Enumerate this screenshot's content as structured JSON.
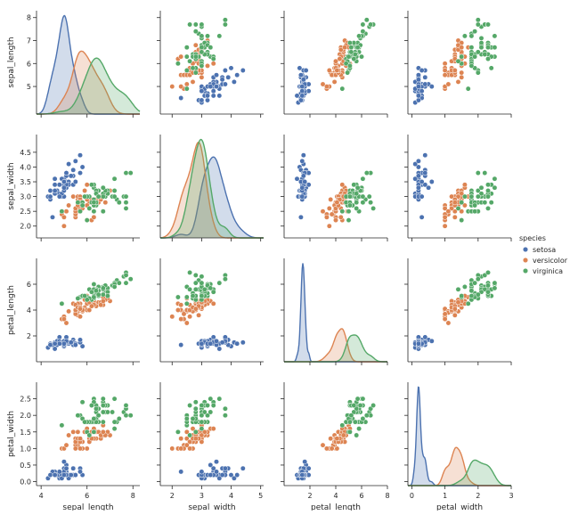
{
  "chart_data": {
    "type": "scatter",
    "variables": [
      "sepal_length",
      "sepal_width",
      "petal_length",
      "petal_width"
    ],
    "ranges": {
      "sepal_length": [
        3.8,
        8.3
      ],
      "sepal_width": [
        1.6,
        5.1
      ],
      "petal_length": [
        0.0,
        8.0
      ],
      "petal_width": [
        -0.12,
        3.0
      ]
    },
    "ticks": {
      "sepal_length": [
        4,
        6,
        8
      ],
      "sepal_width": [
        2,
        3,
        4,
        5
      ],
      "petal_length": [
        2,
        4,
        6,
        8
      ],
      "petal_width": [
        0,
        1,
        2,
        3
      ]
    },
    "tick_labels_y": {
      "sepal_length": [
        "5",
        "6",
        "7",
        "8"
      ],
      "sepal_width": [
        "2.0",
        "2.5",
        "3.0",
        "3.5",
        "4.0",
        "4.5"
      ],
      "petal_length": [
        "2",
        "4",
        "6"
      ],
      "petal_width": [
        "0.0",
        "0.5",
        "1.0",
        "1.5",
        "2.0",
        "2.5"
      ]
    },
    "tick_values_y": {
      "sepal_length": [
        5,
        6,
        7,
        8
      ],
      "sepal_width": [
        2.0,
        2.5,
        3.0,
        3.5,
        4.0,
        4.5
      ],
      "petal_length": [
        2,
        4,
        6
      ],
      "petal_width": [
        0.0,
        0.5,
        1.0,
        1.5,
        2.0,
        2.5
      ]
    },
    "tick_labels_x": {
      "sepal_length": [
        "4",
        "6",
        "8"
      ],
      "sepal_width": [
        "2",
        "3",
        "4",
        "5"
      ],
      "petal_length": [
        "2",
        "4",
        "6",
        "8"
      ],
      "petal_width": [
        "0",
        "1",
        "2",
        "3"
      ]
    },
    "legend": {
      "title": "species",
      "entries": [
        "setosa",
        "versicolor",
        "virginica"
      ],
      "placement": "center-right"
    },
    "colors": {
      "setosa": "#4c72b0",
      "versicolor": "#dd8452",
      "virginica": "#55a868"
    },
    "diagonal": "kde",
    "series": [
      {
        "name": "setosa",
        "points": [
          [
            5.1,
            3.5,
            1.4,
            0.2
          ],
          [
            4.9,
            3.0,
            1.4,
            0.2
          ],
          [
            4.7,
            3.2,
            1.3,
            0.2
          ],
          [
            4.6,
            3.1,
            1.5,
            0.2
          ],
          [
            5.0,
            3.6,
            1.4,
            0.2
          ],
          [
            5.4,
            3.9,
            1.7,
            0.4
          ],
          [
            4.6,
            3.4,
            1.4,
            0.3
          ],
          [
            5.0,
            3.4,
            1.5,
            0.2
          ],
          [
            4.4,
            2.9,
            1.4,
            0.2
          ],
          [
            4.9,
            3.1,
            1.5,
            0.1
          ],
          [
            5.4,
            3.7,
            1.5,
            0.2
          ],
          [
            4.8,
            3.4,
            1.6,
            0.2
          ],
          [
            4.8,
            3.0,
            1.4,
            0.1
          ],
          [
            4.3,
            3.0,
            1.1,
            0.1
          ],
          [
            5.8,
            4.0,
            1.2,
            0.2
          ],
          [
            5.7,
            4.4,
            1.5,
            0.4
          ],
          [
            5.4,
            3.9,
            1.3,
            0.4
          ],
          [
            5.1,
            3.5,
            1.4,
            0.3
          ],
          [
            5.7,
            3.8,
            1.7,
            0.3
          ],
          [
            5.1,
            3.8,
            1.5,
            0.3
          ],
          [
            5.4,
            3.4,
            1.7,
            0.2
          ],
          [
            5.1,
            3.7,
            1.5,
            0.4
          ],
          [
            4.6,
            3.6,
            1.0,
            0.2
          ],
          [
            5.1,
            3.3,
            1.7,
            0.5
          ],
          [
            4.8,
            3.4,
            1.9,
            0.2
          ],
          [
            5.0,
            3.0,
            1.6,
            0.2
          ],
          [
            5.0,
            3.4,
            1.6,
            0.4
          ],
          [
            5.2,
            3.5,
            1.5,
            0.2
          ],
          [
            5.2,
            3.4,
            1.4,
            0.2
          ],
          [
            4.7,
            3.2,
            1.6,
            0.2
          ],
          [
            4.8,
            3.1,
            1.6,
            0.2
          ],
          [
            5.4,
            3.4,
            1.5,
            0.4
          ],
          [
            5.2,
            4.1,
            1.5,
            0.1
          ],
          [
            5.5,
            4.2,
            1.4,
            0.2
          ],
          [
            4.9,
            3.1,
            1.5,
            0.2
          ],
          [
            5.0,
            3.2,
            1.2,
            0.2
          ],
          [
            5.5,
            3.5,
            1.3,
            0.2
          ],
          [
            4.9,
            3.6,
            1.4,
            0.1
          ],
          [
            4.4,
            3.0,
            1.3,
            0.2
          ],
          [
            5.1,
            3.4,
            1.5,
            0.2
          ],
          [
            5.0,
            3.5,
            1.3,
            0.3
          ],
          [
            4.5,
            2.3,
            1.3,
            0.3
          ],
          [
            4.4,
            3.2,
            1.3,
            0.2
          ],
          [
            5.0,
            3.5,
            1.6,
            0.6
          ],
          [
            5.1,
            3.8,
            1.9,
            0.4
          ],
          [
            4.8,
            3.0,
            1.4,
            0.3
          ],
          [
            5.1,
            3.8,
            1.6,
            0.2
          ],
          [
            4.6,
            3.2,
            1.4,
            0.2
          ],
          [
            5.3,
            3.7,
            1.5,
            0.2
          ],
          [
            5.0,
            3.3,
            1.4,
            0.2
          ]
        ]
      },
      {
        "name": "versicolor",
        "points": [
          [
            7.0,
            3.2,
            4.7,
            1.4
          ],
          [
            6.4,
            3.2,
            4.5,
            1.5
          ],
          [
            6.9,
            3.1,
            4.9,
            1.5
          ],
          [
            5.5,
            2.3,
            4.0,
            1.3
          ],
          [
            6.5,
            2.8,
            4.6,
            1.5
          ],
          [
            5.7,
            2.8,
            4.5,
            1.3
          ],
          [
            6.3,
            3.3,
            4.7,
            1.6
          ],
          [
            4.9,
            2.4,
            3.3,
            1.0
          ],
          [
            6.6,
            2.9,
            4.6,
            1.3
          ],
          [
            5.2,
            2.7,
            3.9,
            1.4
          ],
          [
            5.0,
            2.0,
            3.5,
            1.0
          ],
          [
            5.9,
            3.0,
            4.2,
            1.5
          ],
          [
            6.0,
            2.2,
            4.0,
            1.0
          ],
          [
            6.1,
            2.9,
            4.7,
            1.4
          ],
          [
            5.6,
            2.9,
            3.6,
            1.3
          ],
          [
            6.7,
            3.1,
            4.4,
            1.4
          ],
          [
            5.6,
            3.0,
            4.5,
            1.5
          ],
          [
            5.8,
            2.7,
            4.1,
            1.0
          ],
          [
            6.2,
            2.2,
            4.5,
            1.5
          ],
          [
            5.6,
            2.5,
            3.9,
            1.1
          ],
          [
            5.9,
            3.2,
            4.8,
            1.8
          ],
          [
            6.1,
            2.8,
            4.0,
            1.3
          ],
          [
            6.3,
            2.5,
            4.9,
            1.5
          ],
          [
            6.1,
            2.8,
            4.7,
            1.2
          ],
          [
            6.4,
            2.9,
            4.3,
            1.3
          ],
          [
            6.6,
            3.0,
            4.4,
            1.4
          ],
          [
            6.8,
            2.8,
            4.8,
            1.4
          ],
          [
            6.7,
            3.0,
            5.0,
            1.7
          ],
          [
            6.0,
            2.9,
            4.5,
            1.5
          ],
          [
            5.7,
            2.6,
            3.5,
            1.0
          ],
          [
            5.5,
            2.4,
            3.8,
            1.1
          ],
          [
            5.5,
            2.4,
            3.7,
            1.0
          ],
          [
            5.8,
            2.7,
            3.9,
            1.2
          ],
          [
            6.0,
            2.7,
            5.1,
            1.6
          ],
          [
            5.4,
            3.0,
            4.5,
            1.5
          ],
          [
            6.0,
            3.4,
            4.5,
            1.6
          ],
          [
            6.7,
            3.1,
            4.7,
            1.5
          ],
          [
            6.3,
            2.3,
            4.4,
            1.3
          ],
          [
            5.6,
            3.0,
            4.1,
            1.3
          ],
          [
            5.5,
            2.5,
            4.0,
            1.3
          ],
          [
            5.5,
            2.6,
            4.4,
            1.2
          ],
          [
            6.1,
            3.0,
            4.6,
            1.4
          ],
          [
            5.8,
            2.6,
            4.0,
            1.2
          ],
          [
            5.0,
            2.3,
            3.3,
            1.0
          ],
          [
            5.6,
            2.7,
            4.2,
            1.3
          ],
          [
            5.7,
            3.0,
            4.2,
            1.2
          ],
          [
            5.7,
            2.9,
            4.2,
            1.3
          ],
          [
            6.2,
            2.9,
            4.3,
            1.3
          ],
          [
            5.1,
            2.5,
            3.0,
            1.1
          ],
          [
            5.7,
            2.8,
            4.1,
            1.3
          ]
        ]
      },
      {
        "name": "virginica",
        "points": [
          [
            6.3,
            3.3,
            6.0,
            2.5
          ],
          [
            5.8,
            2.7,
            5.1,
            1.9
          ],
          [
            7.1,
            3.0,
            5.9,
            2.1
          ],
          [
            6.3,
            2.9,
            5.6,
            1.8
          ],
          [
            6.5,
            3.0,
            5.8,
            2.2
          ],
          [
            7.6,
            3.0,
            6.6,
            2.1
          ],
          [
            4.9,
            2.5,
            4.5,
            1.7
          ],
          [
            7.3,
            2.9,
            6.3,
            1.8
          ],
          [
            6.7,
            2.5,
            5.8,
            1.8
          ],
          [
            7.2,
            3.6,
            6.1,
            2.5
          ],
          [
            6.5,
            3.2,
            5.1,
            2.0
          ],
          [
            6.4,
            2.7,
            5.3,
            1.9
          ],
          [
            6.8,
            3.0,
            5.5,
            2.1
          ],
          [
            5.7,
            2.5,
            5.0,
            2.0
          ],
          [
            5.8,
            2.8,
            5.1,
            2.4
          ],
          [
            6.4,
            3.2,
            5.3,
            2.3
          ],
          [
            6.5,
            3.0,
            5.5,
            1.8
          ],
          [
            7.7,
            3.8,
            6.7,
            2.2
          ],
          [
            7.7,
            2.6,
            6.9,
            2.3
          ],
          [
            6.0,
            2.2,
            5.0,
            1.5
          ],
          [
            6.9,
            3.2,
            5.7,
            2.3
          ],
          [
            5.6,
            2.8,
            4.9,
            2.0
          ],
          [
            7.7,
            2.8,
            6.7,
            2.0
          ],
          [
            6.3,
            2.7,
            4.9,
            1.8
          ],
          [
            6.7,
            3.3,
            5.7,
            2.1
          ],
          [
            7.2,
            3.2,
            6.0,
            1.8
          ],
          [
            6.2,
            2.8,
            4.8,
            1.8
          ],
          [
            6.1,
            3.0,
            4.9,
            1.8
          ],
          [
            6.4,
            2.8,
            5.6,
            2.1
          ],
          [
            7.2,
            3.0,
            5.8,
            1.6
          ],
          [
            7.4,
            2.8,
            6.1,
            1.9
          ],
          [
            7.9,
            3.8,
            6.4,
            2.0
          ],
          [
            6.4,
            2.8,
            5.6,
            2.2
          ],
          [
            6.3,
            2.8,
            5.1,
            1.5
          ],
          [
            6.1,
            2.6,
            5.6,
            1.4
          ],
          [
            7.7,
            3.0,
            6.1,
            2.3
          ],
          [
            6.3,
            3.4,
            5.6,
            2.4
          ],
          [
            6.4,
            3.1,
            5.5,
            1.8
          ],
          [
            6.0,
            3.0,
            4.8,
            1.8
          ],
          [
            6.9,
            3.1,
            5.4,
            2.1
          ],
          [
            6.7,
            3.1,
            5.6,
            2.4
          ],
          [
            6.9,
            3.1,
            5.1,
            2.3
          ],
          [
            5.8,
            2.7,
            5.1,
            1.9
          ],
          [
            6.8,
            3.2,
            5.9,
            2.3
          ],
          [
            6.7,
            3.3,
            5.7,
            2.5
          ],
          [
            6.7,
            3.0,
            5.2,
            2.3
          ],
          [
            6.3,
            2.5,
            5.0,
            1.9
          ],
          [
            6.5,
            3.0,
            5.2,
            2.0
          ],
          [
            6.2,
            3.4,
            5.4,
            2.3
          ],
          [
            5.9,
            3.0,
            5.1,
            1.8
          ]
        ]
      }
    ]
  }
}
